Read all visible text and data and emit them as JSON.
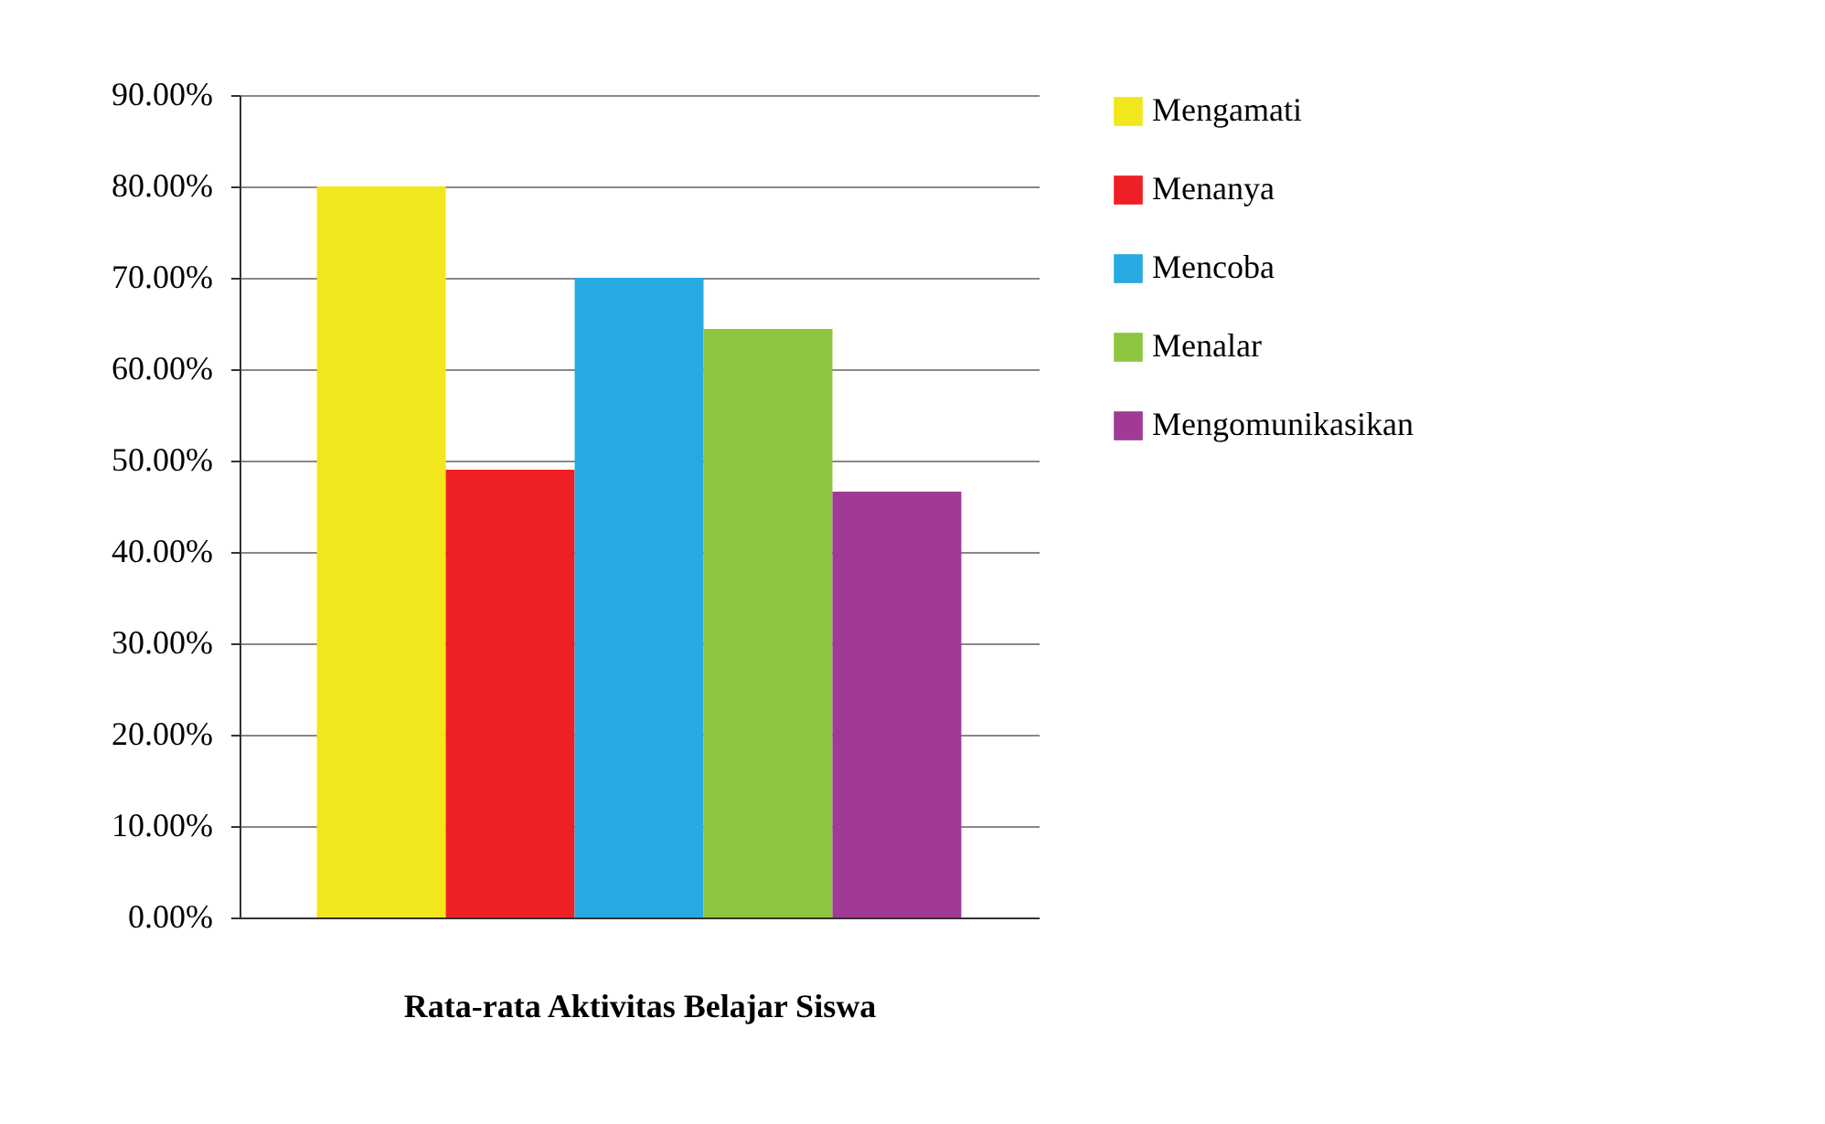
{
  "chart_data": {
    "type": "bar",
    "xlabel": "Rata-rata Aktivitas Belajar Siswa",
    "categories": [
      null
    ],
    "series": [
      {
        "name": "Mengamati",
        "color": "#f2e61c",
        "values": [
          80
        ]
      },
      {
        "name": "Menanya",
        "color": "#ee1f25",
        "values": [
          49
        ]
      },
      {
        "name": "Mencoba",
        "color": "#27aae1",
        "values": [
          70
        ]
      },
      {
        "name": "Menalar",
        "color": "#8cc63f",
        "values": [
          64.4
        ]
      },
      {
        "name": "Mengomunikasikan",
        "color": "#a03a95",
        "values": [
          46.6
        ]
      }
    ],
    "ylim": [
      0,
      90
    ],
    "yticks": [
      {
        "value": 0,
        "label": "0.00%"
      },
      {
        "value": 10,
        "label": "10.00%"
      },
      {
        "value": 20,
        "label": "20.00%"
      },
      {
        "value": 30,
        "label": "30.00%"
      },
      {
        "value": 40,
        "label": "40.00%"
      },
      {
        "value": 50,
        "label": "50.00%"
      },
      {
        "value": 60,
        "label": "60.00%"
      },
      {
        "value": 70,
        "label": "70.00%"
      },
      {
        "value": 80,
        "label": "80.00%"
      },
      {
        "value": 90,
        "label": "90.00%"
      }
    ],
    "grid": "y",
    "legend": "right"
  }
}
